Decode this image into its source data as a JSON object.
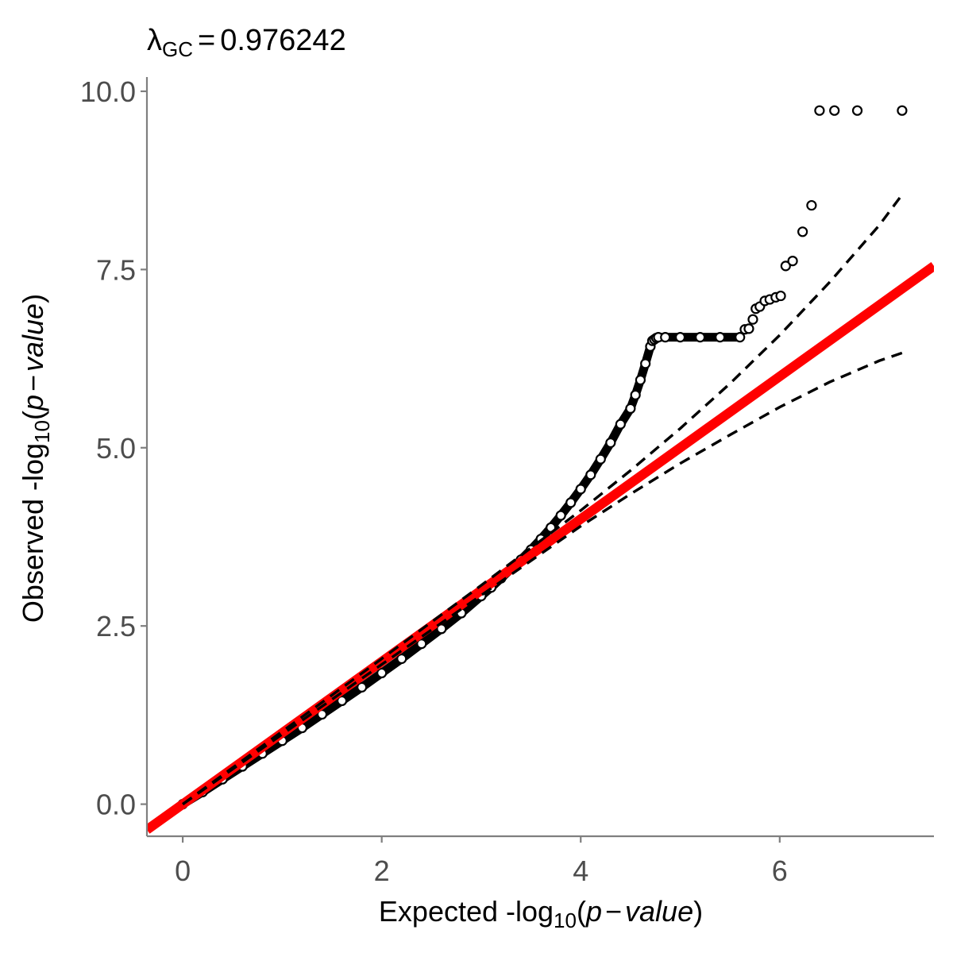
{
  "chart_data": {
    "type": "scatter",
    "title": {
      "lambda_symbol": "λ",
      "lambda_subscript": "GC",
      "equals": "=",
      "value": "0.976242"
    },
    "xlabel": {
      "prefix": "Expected -log",
      "subscript": "10",
      "open": "(",
      "p": "p",
      "minus": "−",
      "value_word": "value",
      "close": ")"
    },
    "ylabel": {
      "prefix": "Observed -log",
      "subscript": "10",
      "open": "(",
      "p": "p",
      "minus": "−",
      "value_word": "value",
      "close": ")"
    },
    "x_ticks": [
      {
        "value": 0,
        "label": "0"
      },
      {
        "value": 2,
        "label": "2"
      },
      {
        "value": 4,
        "label": "4"
      },
      {
        "value": 6,
        "label": "6"
      }
    ],
    "y_ticks": [
      {
        "value": 0,
        "label": "0.0"
      },
      {
        "value": 2.5,
        "label": "2.5"
      },
      {
        "value": 5,
        "label": "5.0"
      },
      {
        "value": 7.5,
        "label": "7.5"
      },
      {
        "value": 10,
        "label": "10.0"
      }
    ],
    "xlim": [
      -0.36,
      7.55
    ],
    "ylim": [
      -0.45,
      10.2
    ],
    "grid": false,
    "series": [
      {
        "kind": "points",
        "marker": "open-circle",
        "color": "#000000",
        "x": [
          0.0,
          0.2,
          0.4,
          0.6,
          0.8,
          1.0,
          1.2,
          1.4,
          1.6,
          1.8,
          2.0,
          2.2,
          2.4,
          2.6,
          2.8,
          3.0,
          3.1,
          3.2,
          3.3,
          3.4,
          3.5,
          3.6,
          3.7,
          3.8,
          3.9,
          4.0,
          4.1,
          4.2,
          4.3,
          4.4,
          4.5,
          4.55,
          4.6,
          4.65,
          4.7,
          4.72,
          4.74,
          4.76,
          4.78,
          4.85,
          5.0,
          5.2,
          5.4,
          5.6,
          5.65,
          5.69,
          5.73,
          5.76,
          5.8,
          5.85,
          5.9,
          5.96,
          6.01,
          6.06,
          6.13,
          6.23,
          6.32,
          6.4,
          6.55,
          6.78,
          7.23
        ],
        "y": [
          0.0,
          0.17,
          0.35,
          0.53,
          0.71,
          0.89,
          1.07,
          1.26,
          1.45,
          1.64,
          1.84,
          2.04,
          2.25,
          2.46,
          2.68,
          2.92,
          3.04,
          3.17,
          3.3,
          3.43,
          3.57,
          3.72,
          3.88,
          4.05,
          4.23,
          4.42,
          4.62,
          4.84,
          5.07,
          5.33,
          5.55,
          5.74,
          5.95,
          6.18,
          6.42,
          6.5,
          6.52,
          6.54,
          6.55,
          6.55,
          6.55,
          6.55,
          6.55,
          6.55,
          6.66,
          6.67,
          6.8,
          6.95,
          6.98,
          7.06,
          7.08,
          7.11,
          7.13,
          7.55,
          7.62,
          8.03,
          8.4,
          9.73,
          9.73,
          9.73,
          9.73
        ]
      },
      {
        "kind": "line",
        "style": "solid",
        "color": "#ff0000",
        "x": [
          -0.36,
          7.55
        ],
        "y": [
          -0.36,
          7.55
        ]
      },
      {
        "kind": "line",
        "style": "dashed",
        "color": "#000000",
        "x": [
          0.0,
          1.0,
          2.0,
          3.0,
          4.0,
          4.5,
          5.0,
          5.5,
          6.0,
          6.5,
          7.0,
          7.23
        ],
        "y": [
          0.0,
          1.02,
          2.04,
          3.07,
          4.12,
          4.68,
          5.27,
          5.9,
          6.58,
          7.32,
          8.12,
          8.55
        ]
      },
      {
        "kind": "line",
        "style": "dashed",
        "color": "#000000",
        "x": [
          0.0,
          1.0,
          2.0,
          3.0,
          4.0,
          4.5,
          5.0,
          5.5,
          6.0,
          6.5,
          7.0,
          7.23
        ],
        "y": [
          0.0,
          0.98,
          1.96,
          2.93,
          3.9,
          4.35,
          4.78,
          5.18,
          5.57,
          5.92,
          6.22,
          6.33
        ]
      }
    ]
  }
}
